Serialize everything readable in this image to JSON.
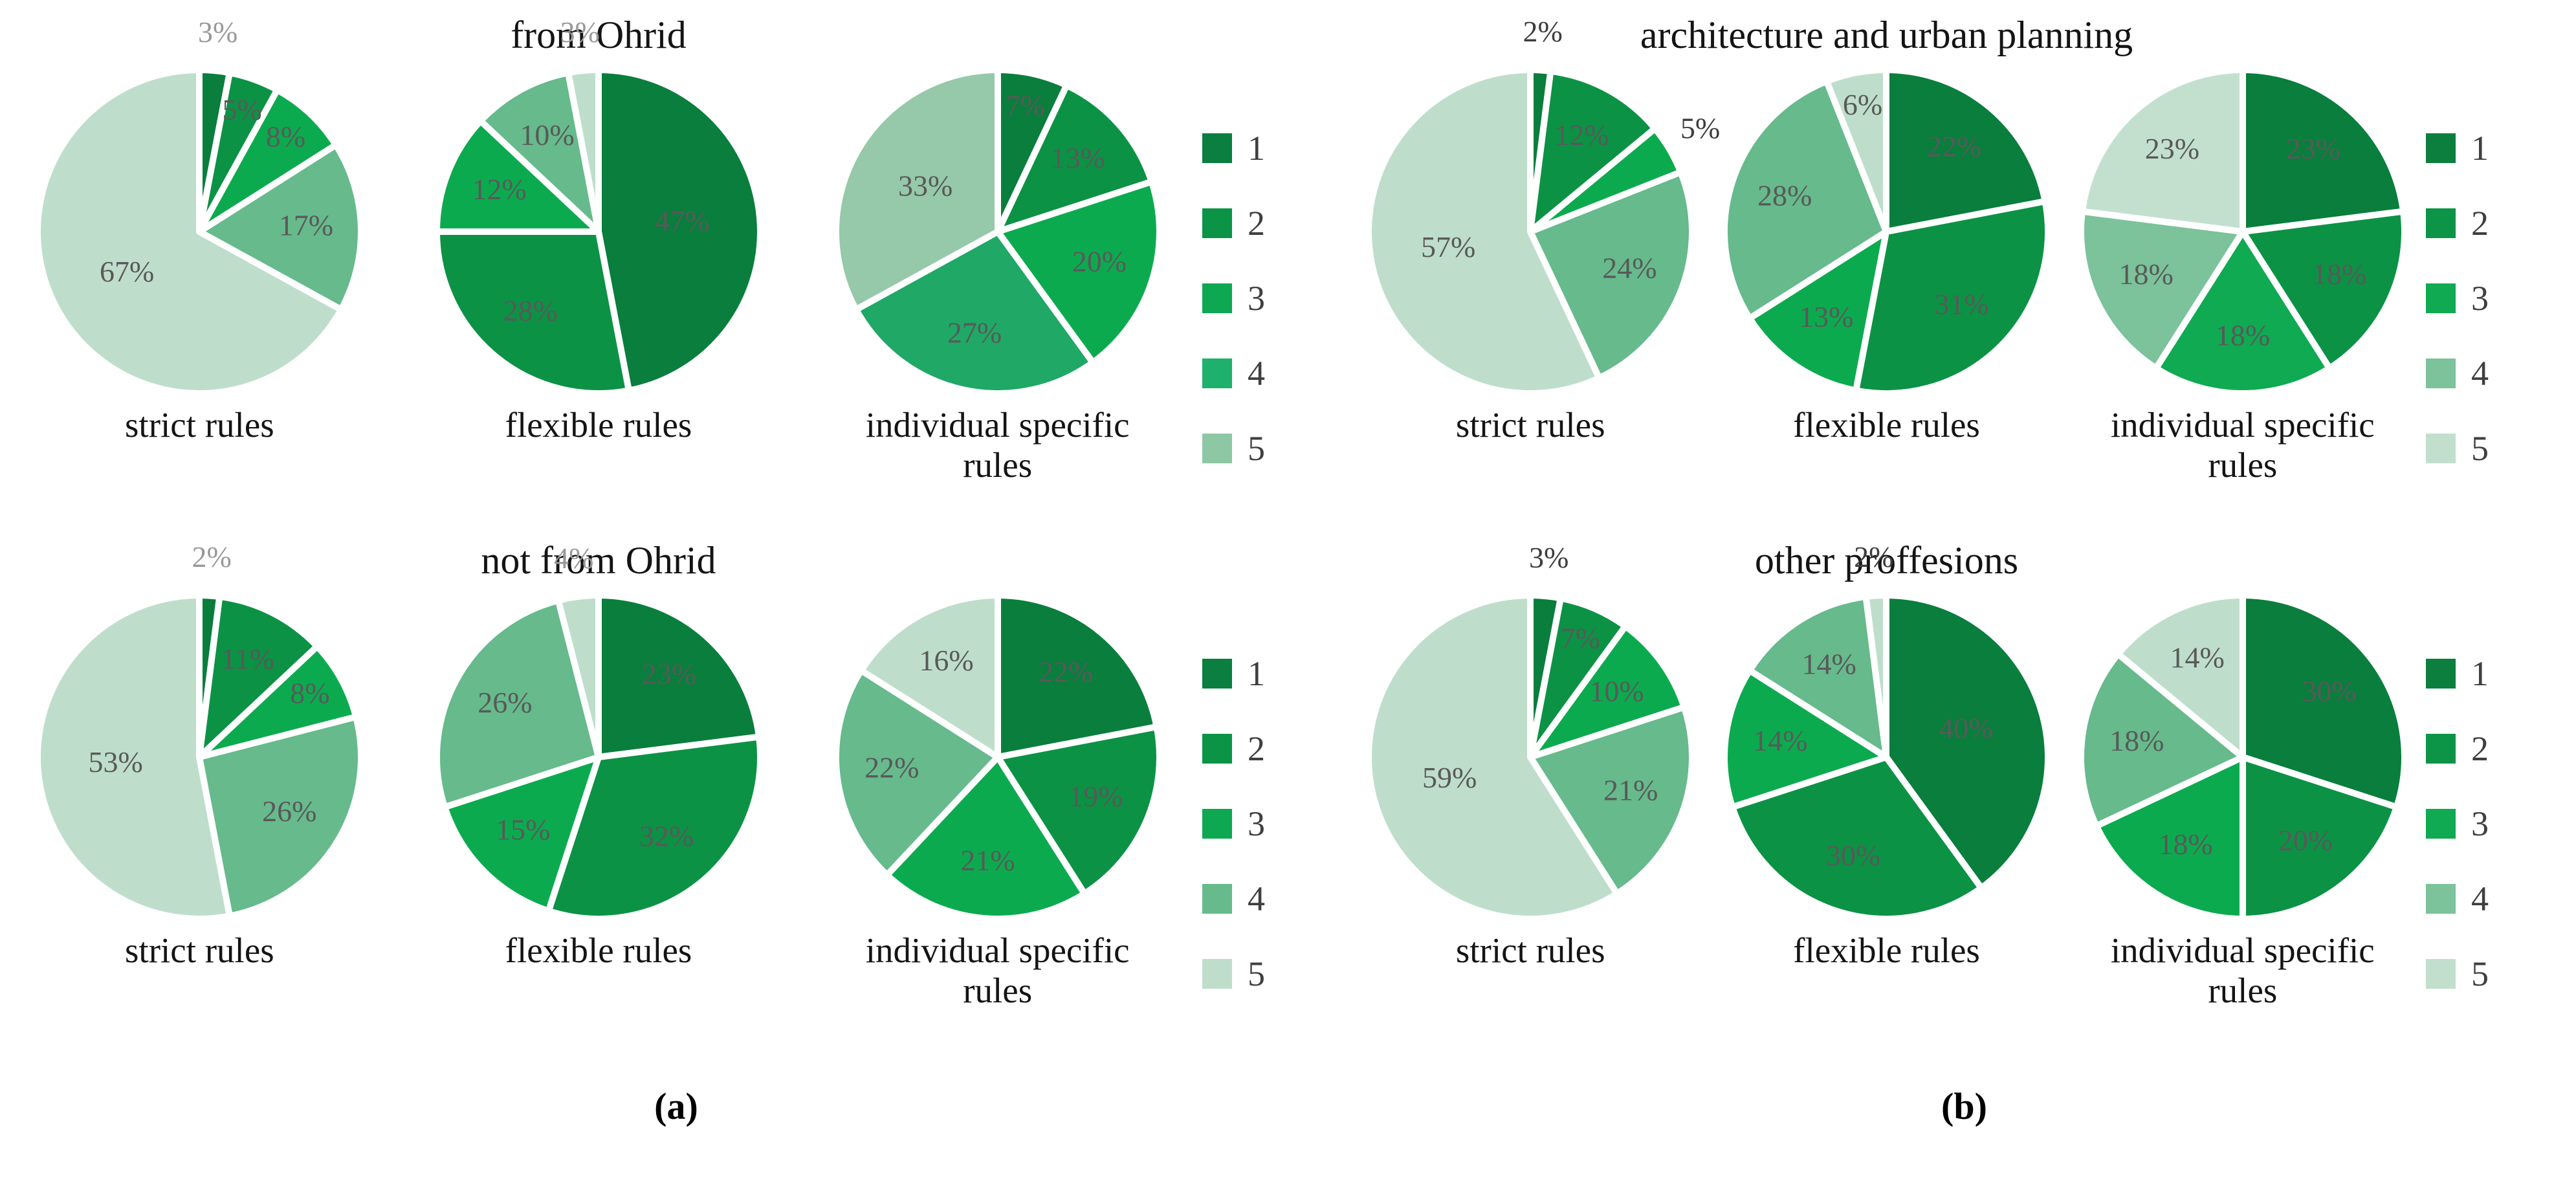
{
  "captions": {
    "a": "(a)",
    "b": "(b)"
  },
  "colors": {
    "default_palette": [
      "#097e3d",
      "#0c9245",
      "#0caa4f",
      "#66ba8c",
      "#bedecb"
    ],
    "inside_label": "#595959",
    "outside_label_group_a": "#999999",
    "outside_label_group_b": "#3d3d3d",
    "slice_border": "#ffffff"
  },
  "chart_data": [
    {
      "type": "pie",
      "group": "a",
      "title": "from Ohrid",
      "legend": {
        "position": "right",
        "labels": [
          "1",
          "2",
          "3",
          "4",
          "5"
        ],
        "colors": [
          "#0a7f3f",
          "#0b9446",
          "#0ea852",
          "#1eb06d",
          "#8ec7a4"
        ]
      },
      "pies": [
        {
          "caption": "strict rules",
          "categories": [
            "1",
            "2",
            "3",
            "4",
            "5"
          ],
          "values": [
            3,
            5,
            8,
            17,
            67
          ],
          "pct_labels": [
            "3%",
            "5%",
            "8%",
            "17%",
            "67%"
          ],
          "outside": [
            0
          ]
        },
        {
          "caption": "flexible rules",
          "categories": [
            "1",
            "2",
            "3",
            "4",
            "5"
          ],
          "values": [
            47,
            28,
            12,
            10,
            3
          ],
          "pct_labels": [
            "47%",
            "28%",
            "12%",
            "10%",
            "3%"
          ],
          "outside": [
            4
          ]
        },
        {
          "caption": "individual specific rules",
          "categories": [
            "1",
            "2",
            "3",
            "4",
            "5"
          ],
          "values": [
            7,
            13,
            20,
            27,
            33
          ],
          "pct_labels": [
            "7%",
            "13%",
            "20%",
            "27%",
            "33%"
          ],
          "colors": [
            "#097e3d",
            "#0c9245",
            "#0caa4f",
            "#1fa866",
            "#95c9a9"
          ],
          "outside": []
        }
      ]
    },
    {
      "type": "pie",
      "group": "a",
      "title": "not from Ohrid",
      "legend": {
        "position": "right",
        "labels": [
          "1",
          "2",
          "3",
          "4",
          "5"
        ],
        "colors": [
          "#0a7f3f",
          "#0b9446",
          "#0ea852",
          "#66ba8c",
          "#bedecb"
        ]
      },
      "pies": [
        {
          "caption": "strict rules",
          "categories": [
            "1",
            "2",
            "3",
            "4",
            "5"
          ],
          "values": [
            2,
            11,
            8,
            26,
            53
          ],
          "pct_labels": [
            "2%",
            "11%",
            "8%",
            "26%",
            "53%"
          ],
          "outside": [
            0
          ]
        },
        {
          "caption": "flexible rules",
          "categories": [
            "1",
            "2",
            "3",
            "4",
            "5"
          ],
          "values": [
            23,
            32,
            15,
            26,
            4
          ],
          "pct_labels": [
            "23%",
            "32%",
            "15%",
            "26%",
            "4%"
          ],
          "outside": [
            4
          ]
        },
        {
          "caption": "individual specific rules",
          "categories": [
            "1",
            "2",
            "3",
            "4",
            "5"
          ],
          "values": [
            22,
            19,
            21,
            22,
            16
          ],
          "pct_labels": [
            "22%",
            "19%",
            "21%",
            "22%",
            "16%"
          ],
          "outside": []
        }
      ]
    },
    {
      "type": "pie",
      "group": "b",
      "title": "architecture and urban planning",
      "legend": {
        "position": "right",
        "labels": [
          "1",
          "2",
          "3",
          "4",
          "5"
        ],
        "colors": [
          "#0c7f3f",
          "#0c9447",
          "#0faa51",
          "#7cc29b",
          "#c2dfce"
        ]
      },
      "pies": [
        {
          "caption": "strict rules",
          "categories": [
            "1",
            "2",
            "3",
            "4",
            "5"
          ],
          "values": [
            2,
            12,
            5,
            24,
            57
          ],
          "pct_labels": [
            "2%",
            "12%",
            "5%",
            "24%",
            "57%"
          ],
          "outside": [
            0,
            2
          ]
        },
        {
          "caption": "flexible rules",
          "categories": [
            "1",
            "2",
            "3",
            "4",
            "5"
          ],
          "values": [
            22,
            31,
            13,
            28,
            6
          ],
          "pct_labels": [
            "22%",
            "31%",
            "13%",
            "28%",
            "6%"
          ],
          "outside": []
        },
        {
          "caption": "individual specific rules",
          "categories": [
            "1",
            "2",
            "3",
            "4",
            "5"
          ],
          "values": [
            23,
            18,
            18,
            18,
            23
          ],
          "pct_labels": [
            "23%",
            "18%",
            "18%",
            "18%",
            "23%"
          ],
          "colors": [
            "#097e3d",
            "#0c9245",
            "#0faa52",
            "#7cc29b",
            "#c3e0cf"
          ],
          "outside": []
        }
      ]
    },
    {
      "type": "pie",
      "group": "b",
      "title": "other proffesions",
      "legend": {
        "position": "right",
        "labels": [
          "1",
          "2",
          "3",
          "4",
          "5"
        ],
        "colors": [
          "#0c7f3f",
          "#0c9447",
          "#0faa51",
          "#7cc29b",
          "#c2dfce"
        ]
      },
      "pies": [
        {
          "caption": "strict rules",
          "categories": [
            "1",
            "2",
            "3",
            "4",
            "5"
          ],
          "values": [
            3,
            7,
            10,
            21,
            59
          ],
          "pct_labels": [
            "3%",
            "7%",
            "10%",
            "21%",
            "59%"
          ],
          "outside": [
            0
          ]
        },
        {
          "caption": "flexible rules",
          "categories": [
            "1",
            "2",
            "3",
            "4",
            "5"
          ],
          "values": [
            40,
            30,
            14,
            14,
            2
          ],
          "pct_labels": [
            "40%",
            "30%",
            "14%",
            "14%",
            "2%"
          ],
          "outside": [
            4
          ]
        },
        {
          "caption": "individual specific rules",
          "categories": [
            "1",
            "2",
            "3",
            "4",
            "5"
          ],
          "values": [
            30,
            20,
            18,
            18,
            14
          ],
          "pct_labels": [
            "30%",
            "20%",
            "18%",
            "18%",
            "14%"
          ],
          "outside": []
        }
      ]
    }
  ]
}
